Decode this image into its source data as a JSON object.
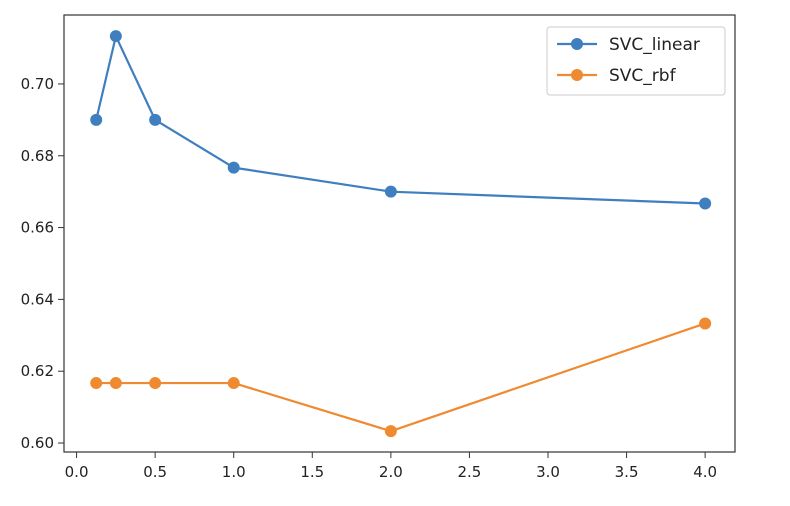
{
  "chart_data": {
    "type": "line",
    "title": "",
    "xlabel": "",
    "ylabel": "",
    "xlim": [
      -0.08,
      4.19
    ],
    "ylim": [
      0.5975,
      0.7192
    ],
    "xticks": [
      0.0,
      0.5,
      1.0,
      1.5,
      2.0,
      2.5,
      3.0,
      3.5,
      4.0
    ],
    "xtick_labels": [
      "0.0",
      "0.5",
      "1.0",
      "1.5",
      "2.0",
      "2.5",
      "3.0",
      "3.5",
      "4.0"
    ],
    "yticks": [
      0.6,
      0.62,
      0.64,
      0.66,
      0.68,
      0.7
    ],
    "ytick_labels": [
      "0.60",
      "0.62",
      "0.64",
      "0.66",
      "0.68",
      "0.70"
    ],
    "grid": false,
    "legend_position": "top-right",
    "series": [
      {
        "name": "SVC_linear",
        "color": "#3f7fbf",
        "x": [
          0.125,
          0.25,
          0.5,
          1.0,
          2.0,
          4.0
        ],
        "y": [
          0.69,
          0.7133,
          0.69,
          0.6767,
          0.67,
          0.6667
        ]
      },
      {
        "name": "SVC_rbf",
        "color": "#f08a30",
        "x": [
          0.125,
          0.25,
          0.5,
          1.0,
          2.0,
          4.0
        ],
        "y": [
          0.6167,
          0.6167,
          0.6167,
          0.6167,
          0.6033,
          0.6333
        ]
      }
    ]
  }
}
